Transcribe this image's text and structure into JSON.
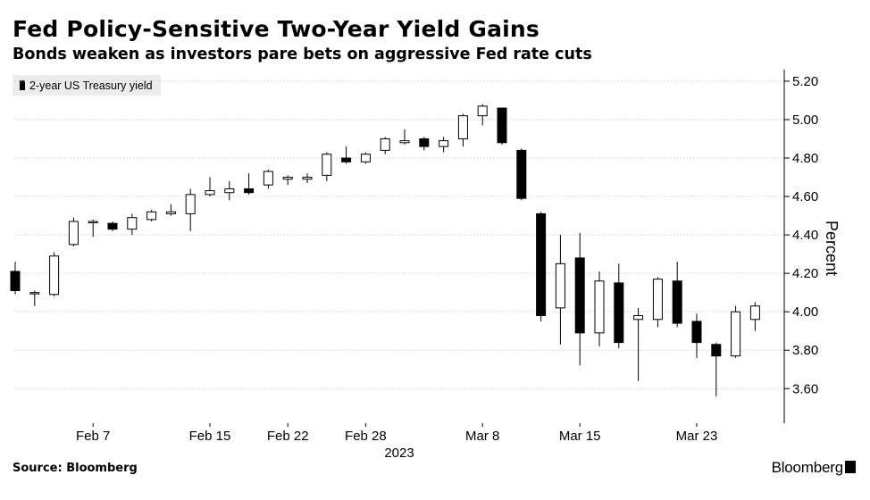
{
  "header": {
    "title": "Fed Policy-Sensitive Two-Year Yield Gains",
    "subtitle": "Bonds weaken as investors pare bets on aggressive Fed rate cuts"
  },
  "footer": {
    "source": "Source: Bloomberg",
    "brand": "Bloomberg"
  },
  "colors": {
    "up": "#ffffff",
    "down": "#000000",
    "grid": "#cfcfcf",
    "text": "#000000"
  },
  "chart_data": {
    "type": "candlestick",
    "title": "Fed Policy-Sensitive Two-Year Yield Gains",
    "subtitle": "Bonds weaken as investors pare bets on aggressive Fed rate cuts",
    "ylabel": "Percent",
    "ylim": [
      3.42,
      5.26
    ],
    "yticks": [
      3.6,
      3.8,
      4.0,
      4.2,
      4.4,
      4.6,
      4.8,
      5.0,
      5.2
    ],
    "y_axis_position": "right",
    "grid": "horizontal dotted",
    "legend": {
      "position": "top-left",
      "entries": [
        "2-year US Treasury yield"
      ]
    },
    "xaxis": {
      "ticks": [
        {
          "label": "Feb 7",
          "index": 4
        },
        {
          "label": "Feb 15",
          "index": 10
        },
        {
          "label": "Feb 22",
          "index": 14
        },
        {
          "label": "Feb 28",
          "index": 18
        },
        {
          "label": "Mar 8",
          "index": 24
        },
        {
          "label": "Mar 15",
          "index": 29
        },
        {
          "label": "Mar 23",
          "index": 35
        }
      ],
      "year_label": "2023"
    },
    "series": [
      {
        "name": "2-year US Treasury yield",
        "candles": [
          {
            "o": 4.21,
            "h": 4.26,
            "l": 4.09,
            "c": 4.11
          },
          {
            "o": 4.1,
            "h": 4.11,
            "l": 4.03,
            "c": 4.1
          },
          {
            "o": 4.09,
            "h": 4.31,
            "l": 4.08,
            "c": 4.29
          },
          {
            "o": 4.35,
            "h": 4.49,
            "l": 4.34,
            "c": 4.47
          },
          {
            "o": 4.47,
            "h": 4.48,
            "l": 4.39,
            "c": 4.47
          },
          {
            "o": 4.46,
            "h": 4.47,
            "l": 4.42,
            "c": 4.43
          },
          {
            "o": 4.43,
            "h": 4.51,
            "l": 4.4,
            "c": 4.49
          },
          {
            "o": 4.48,
            "h": 4.53,
            "l": 4.47,
            "c": 4.52
          },
          {
            "o": 4.51,
            "h": 4.56,
            "l": 4.5,
            "c": 4.52
          },
          {
            "o": 4.51,
            "h": 4.64,
            "l": 4.42,
            "c": 4.61
          },
          {
            "o": 4.61,
            "h": 4.7,
            "l": 4.6,
            "c": 4.63
          },
          {
            "o": 4.62,
            "h": 4.68,
            "l": 4.58,
            "c": 4.64
          },
          {
            "o": 4.64,
            "h": 4.72,
            "l": 4.61,
            "c": 4.62
          },
          {
            "o": 4.66,
            "h": 4.74,
            "l": 4.64,
            "c": 4.73
          },
          {
            "o": 4.69,
            "h": 4.71,
            "l": 4.66,
            "c": 4.7
          },
          {
            "o": 4.69,
            "h": 4.72,
            "l": 4.67,
            "c": 4.7
          },
          {
            "o": 4.71,
            "h": 4.83,
            "l": 4.68,
            "c": 4.82
          },
          {
            "o": 4.8,
            "h": 4.86,
            "l": 4.77,
            "c": 4.78
          },
          {
            "o": 4.78,
            "h": 4.83,
            "l": 4.77,
            "c": 4.82
          },
          {
            "o": 4.84,
            "h": 4.91,
            "l": 4.82,
            "c": 4.9
          },
          {
            "o": 4.88,
            "h": 4.95,
            "l": 4.87,
            "c": 4.89
          },
          {
            "o": 4.9,
            "h": 4.91,
            "l": 4.84,
            "c": 4.86
          },
          {
            "o": 4.86,
            "h": 4.91,
            "l": 4.83,
            "c": 4.89
          },
          {
            "o": 4.9,
            "h": 5.03,
            "l": 4.86,
            "c": 5.02
          },
          {
            "o": 5.02,
            "h": 5.08,
            "l": 4.97,
            "c": 5.07
          },
          {
            "o": 5.06,
            "h": 5.06,
            "l": 4.87,
            "c": 4.88
          },
          {
            "o": 4.84,
            "h": 4.85,
            "l": 4.58,
            "c": 4.59
          },
          {
            "o": 4.51,
            "h": 4.52,
            "l": 3.95,
            "c": 3.98
          },
          {
            "o": 4.02,
            "h": 4.4,
            "l": 3.83,
            "c": 4.25
          },
          {
            "o": 4.28,
            "h": 4.41,
            "l": 3.72,
            "c": 3.89
          },
          {
            "o": 3.89,
            "h": 4.21,
            "l": 3.82,
            "c": 4.16
          },
          {
            "o": 4.15,
            "h": 4.25,
            "l": 3.81,
            "c": 3.84
          },
          {
            "o": 3.96,
            "h": 4.02,
            "l": 3.64,
            "c": 3.98
          },
          {
            "o": 3.96,
            "h": 4.18,
            "l": 3.92,
            "c": 4.17
          },
          {
            "o": 4.16,
            "h": 4.26,
            "l": 3.92,
            "c": 3.94
          },
          {
            "o": 3.95,
            "h": 3.99,
            "l": 3.76,
            "c": 3.84
          },
          {
            "o": 3.83,
            "h": 3.84,
            "l": 3.56,
            "c": 3.77
          },
          {
            "o": 3.77,
            "h": 4.03,
            "l": 3.76,
            "c": 4.0
          },
          {
            "o": 3.96,
            "h": 4.05,
            "l": 3.9,
            "c": 4.03
          }
        ]
      }
    ],
    "annotations": []
  }
}
